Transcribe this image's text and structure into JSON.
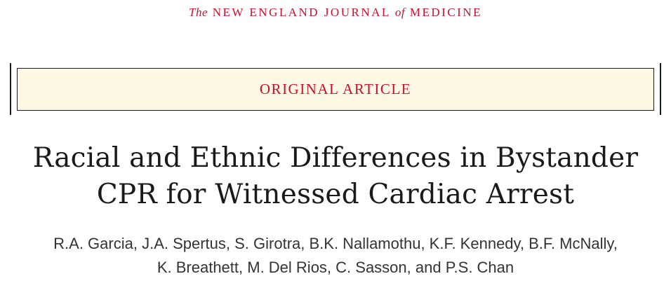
{
  "masthead": {
    "the": "The",
    "part1": "NEW ENGLAND JOURNAL",
    "of": "of",
    "part2": "MEDICINE"
  },
  "banner": {
    "label": "ORIGINAL ARTICLE"
  },
  "article": {
    "title_line1": "Racial and Ethnic Differences in Bystander",
    "title_line2": "CPR for Witnessed Cardiac Arrest",
    "authors_line1": "R.A. Garcia, J.A. Spertus, S. Girotra, B.K. Nallamothu, K.F. Kennedy, B.F. McNally,",
    "authors_line2": "K. Breathett, M. Del Rios, C. Sasson, and P.S. Chan"
  },
  "colors": {
    "accent": "#c8102e",
    "banner_bg": "#fdf8e3",
    "text": "#1a1a1a"
  }
}
